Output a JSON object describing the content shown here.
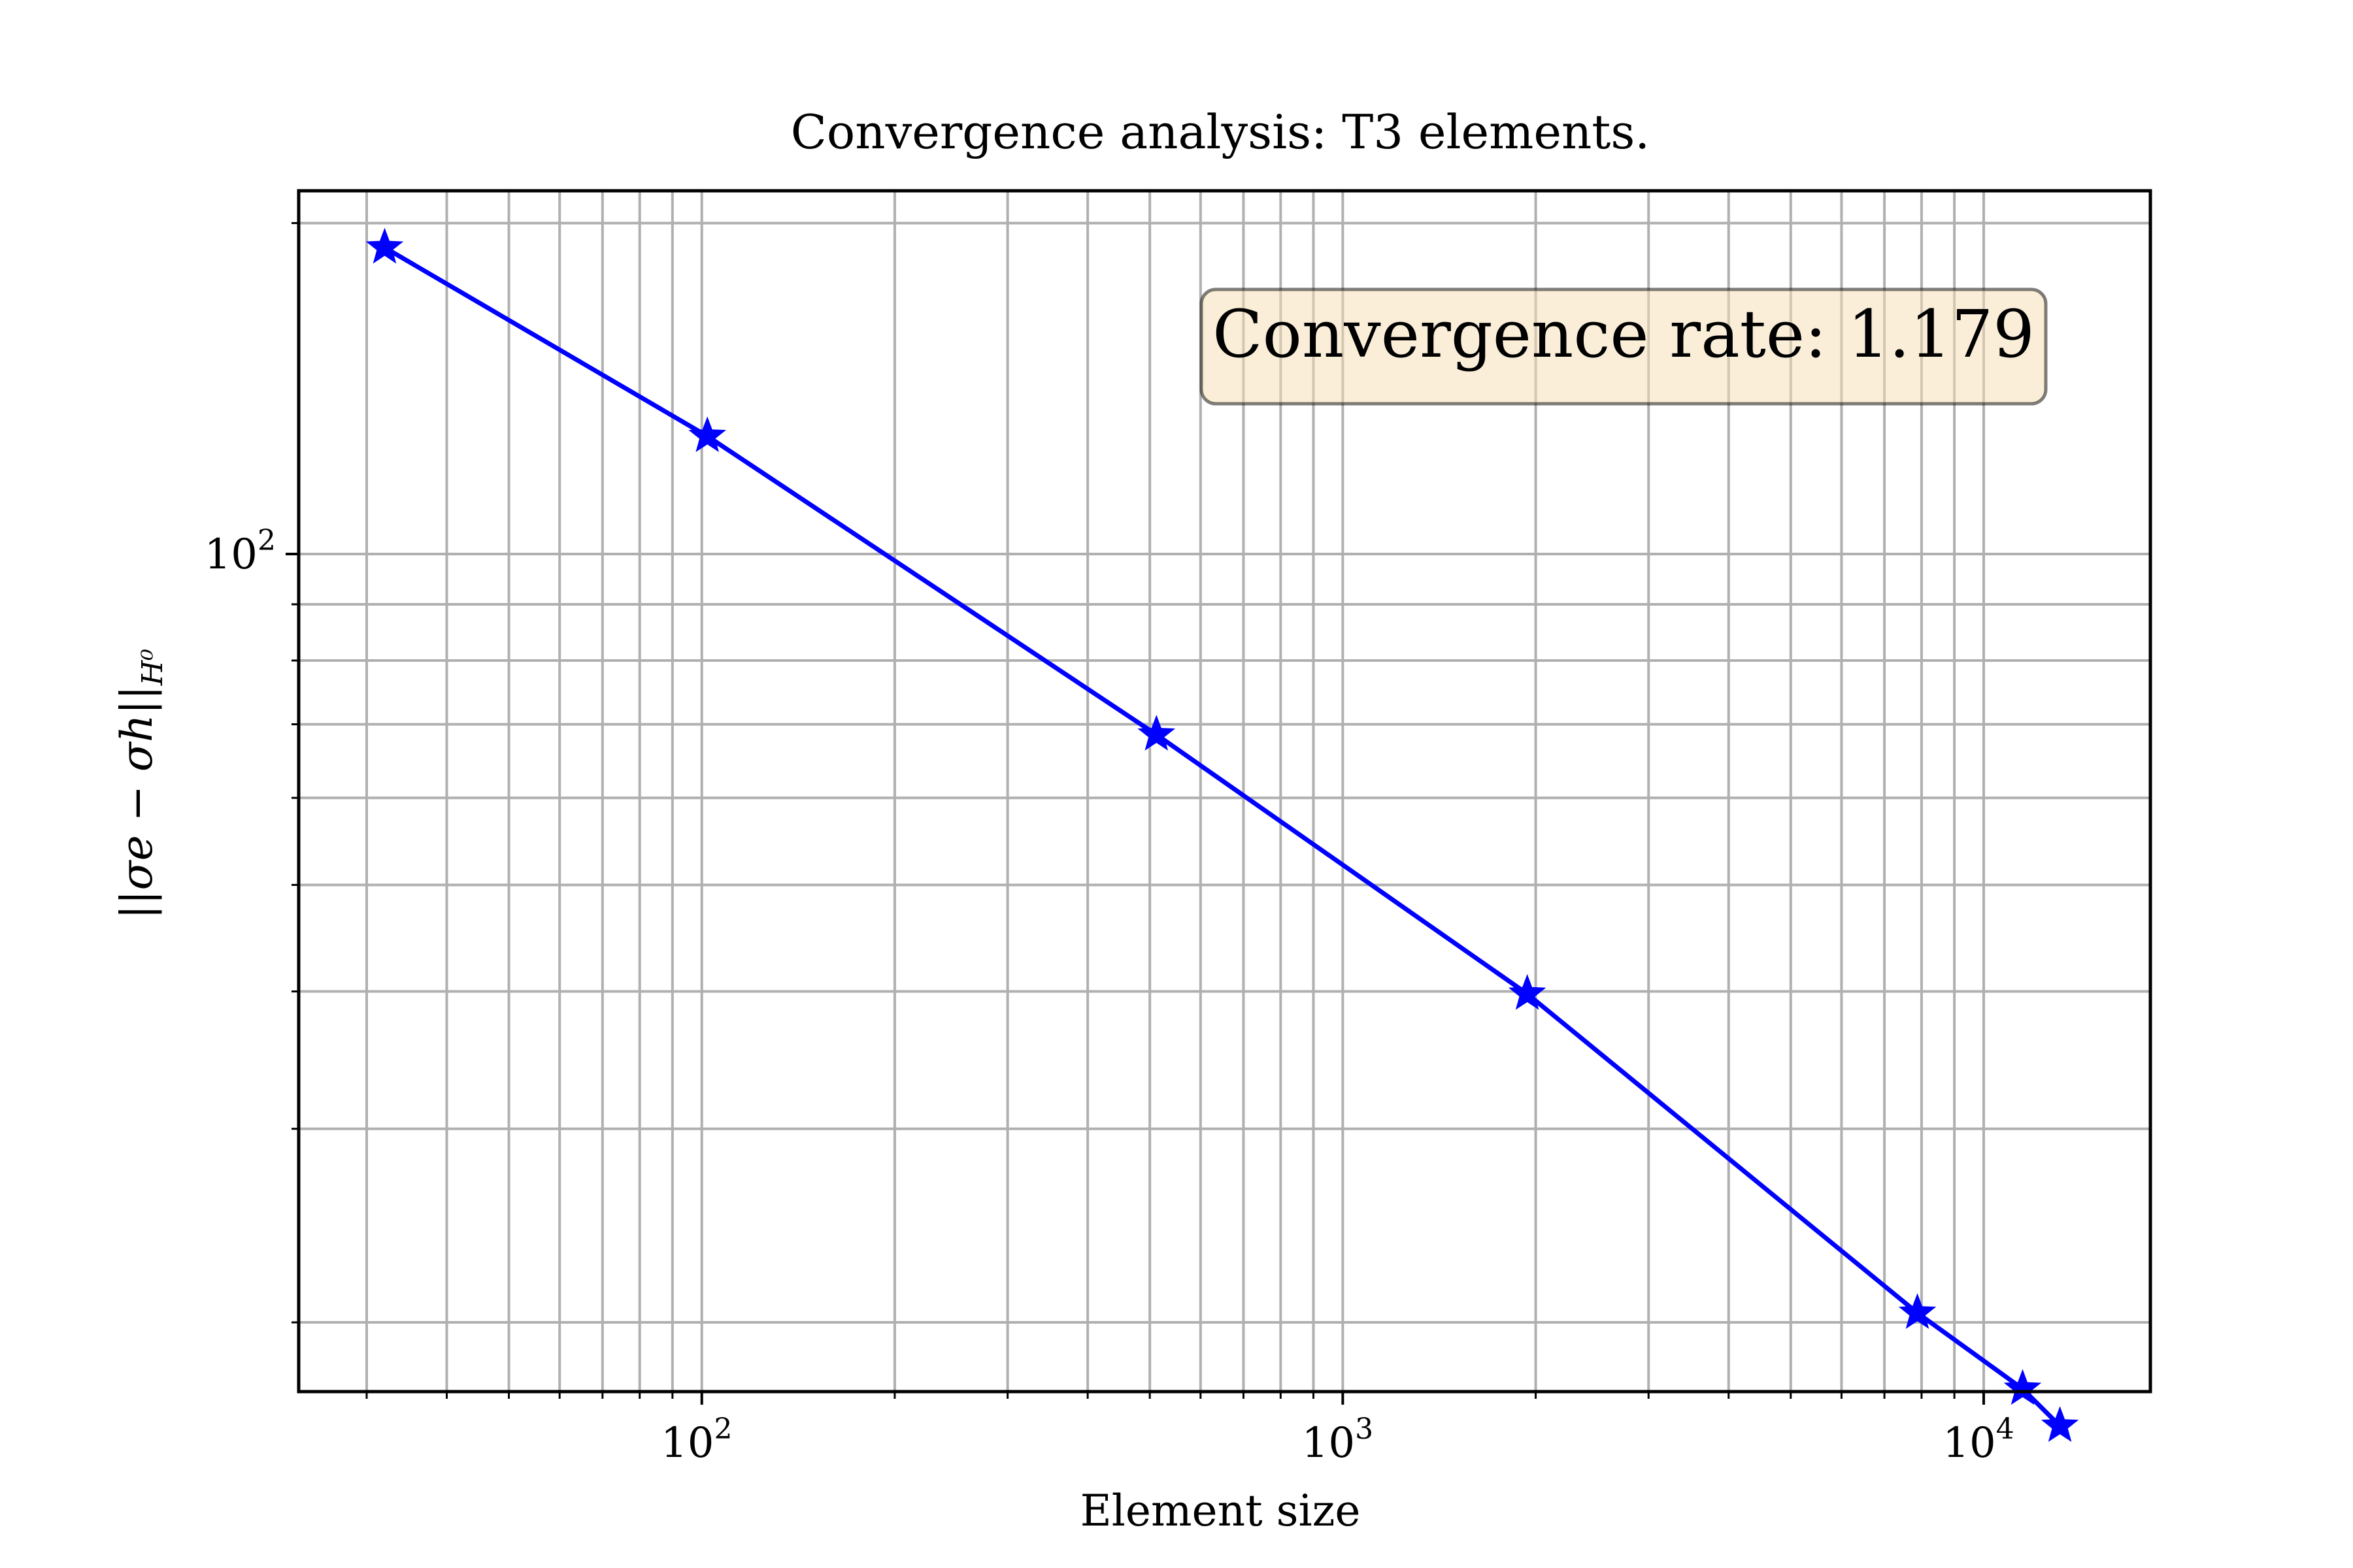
{
  "chart_data": {
    "type": "line",
    "title": "Convergence analysis: T3 elements.",
    "xlabel": "Element size",
    "ylabel_base": "||σe − σh||",
    "ylabel_sub": "H⁰",
    "xscale": "log",
    "yscale": "log",
    "xlim": [
      23.5,
      18200
    ],
    "ylim": [
      17.3,
      214
    ],
    "grid": "both (major and minor)",
    "x_ticks": [
      {
        "value": 100,
        "base": "10",
        "exp": "2"
      },
      {
        "value": 1000,
        "base": "10",
        "exp": "3"
      },
      {
        "value": 10000,
        "base": "10",
        "exp": "4"
      }
    ],
    "y_ticks": [
      {
        "value": 100,
        "base": "10",
        "exp": "2"
      }
    ],
    "series": [
      {
        "color": "#0000ff",
        "marker": "star",
        "x": [
          32,
          102,
          512,
          1940,
          7880,
          11500,
          13150
        ],
        "y": [
          190,
          128,
          68.5,
          39.8,
          20.4,
          17.4,
          16.1
        ]
      }
    ],
    "annotation": {
      "text": "Convergence rate: 1.179",
      "placement": "top-right",
      "box_color": "#f5deb3"
    }
  }
}
